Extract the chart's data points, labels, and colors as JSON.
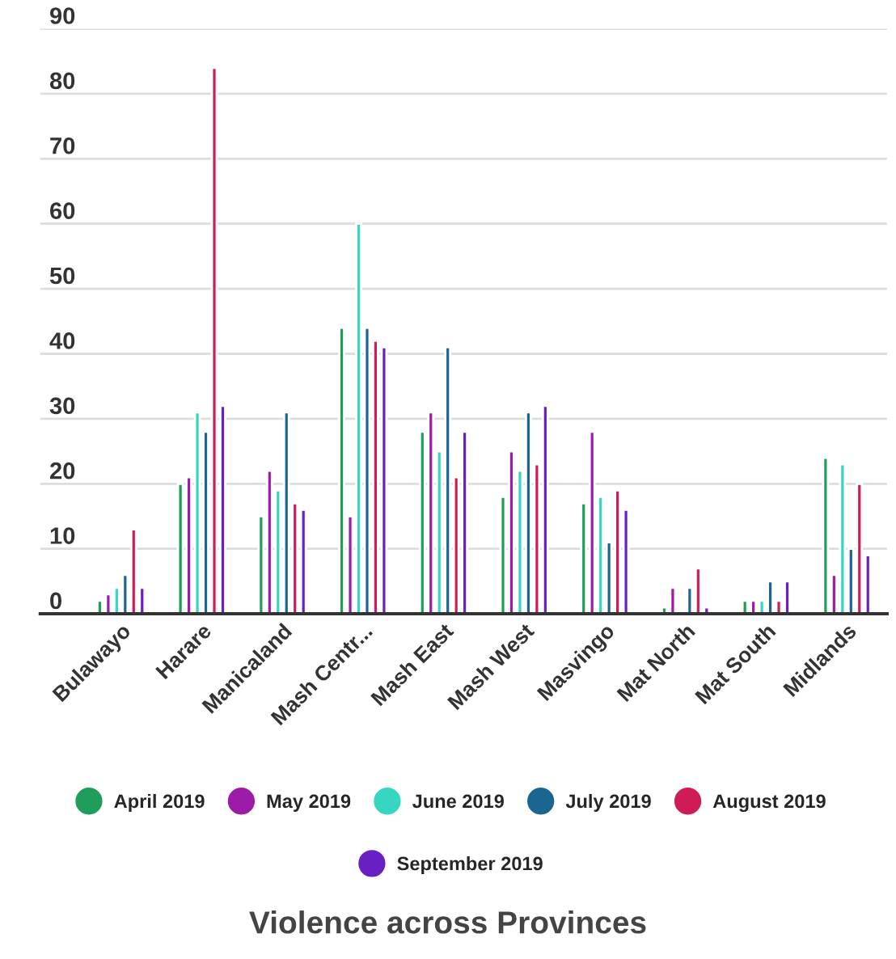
{
  "chart_data": {
    "type": "bar",
    "title": "Violence across Provinces",
    "categories": [
      "Bulawayo",
      "Harare",
      "Manicaland",
      "Mash Centr...",
      "Mash East",
      "Mash West",
      "Masvingo",
      "Mat North",
      "Mat South",
      "Midlands"
    ],
    "series": [
      {
        "name": "April 2019",
        "color": "#1e9e5a",
        "values": [
          2,
          20,
          15,
          44,
          28,
          18,
          17,
          1,
          2,
          24
        ]
      },
      {
        "name": "May 2019",
        "color": "#9c1ba8",
        "values": [
          3,
          21,
          22,
          15,
          31,
          25,
          28,
          4,
          2,
          6
        ]
      },
      {
        "name": "June 2019",
        "color": "#36d6c3",
        "values": [
          4,
          31,
          19,
          60,
          25,
          22,
          18,
          null,
          2,
          23
        ]
      },
      {
        "name": "July 2019",
        "color": "#1a6690",
        "values": [
          6,
          28,
          31,
          44,
          41,
          31,
          11,
          4,
          5,
          10
        ]
      },
      {
        "name": "August 2019",
        "color": "#d01c54",
        "values": [
          13,
          84,
          17,
          42,
          21,
          23,
          19,
          7,
          2,
          20
        ]
      },
      {
        "name": "September 2019",
        "color": "#6a1fc2",
        "values": [
          4,
          32,
          16,
          41,
          28,
          32,
          16,
          1,
          5,
          9
        ]
      }
    ],
    "ylim": [
      0,
      90
    ],
    "yticks": [
      0,
      10,
      20,
      30,
      40,
      50,
      60,
      70,
      80,
      90
    ],
    "grid": "y",
    "legend": "bottom"
  }
}
